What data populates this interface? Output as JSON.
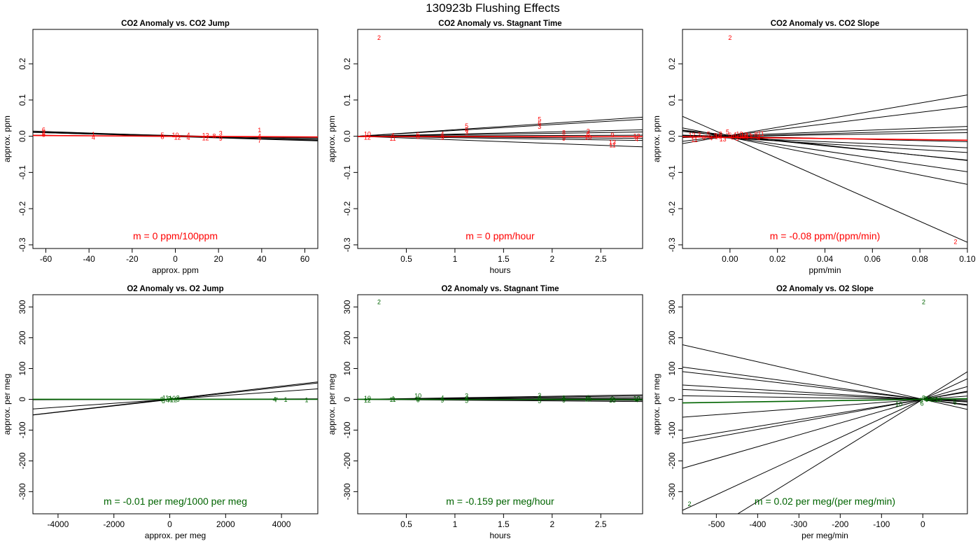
{
  "figure_title": "130923b   Flushing Effects",
  "chart_data": [
    {
      "type": "scatter",
      "title": "CO2 Anomaly vs. CO2 Jump",
      "xlabel": "approx. ppm",
      "ylabel": "approx. ppm",
      "xlim": [
        -66,
        66
      ],
      "ylim": [
        -0.31,
        0.295
      ],
      "xticks": [
        -60,
        -40,
        -20,
        0,
        20,
        40,
        60
      ],
      "yticks": [
        -0.3,
        -0.2,
        -0.1,
        0.0,
        0.1,
        0.2
      ],
      "color": "#ff0000",
      "fit_color": "#ff0000",
      "annotation": "m = 0 ppm/100ppm",
      "points": [
        {
          "x": -61,
          "y": 0.018,
          "label": "6"
        },
        {
          "x": -61,
          "y": 0.01,
          "label": "2"
        },
        {
          "x": -61,
          "y": 0.004,
          "label": "8"
        },
        {
          "x": -38,
          "y": 0.005,
          "label": "1"
        },
        {
          "x": -38,
          "y": -0.004,
          "label": "4"
        },
        {
          "x": -6,
          "y": 0.003,
          "label": "5"
        },
        {
          "x": -6,
          "y": -0.002,
          "label": "8"
        },
        {
          "x": 0,
          "y": 0.003,
          "label": "10"
        },
        {
          "x": 1,
          "y": -0.004,
          "label": "12"
        },
        {
          "x": 6,
          "y": 0.003,
          "label": "4"
        },
        {
          "x": 6,
          "y": -0.005,
          "label": "4"
        },
        {
          "x": 14,
          "y": 0.002,
          "label": "13"
        },
        {
          "x": 14,
          "y": -0.006,
          "label": "12"
        },
        {
          "x": 18,
          "y": 0.0,
          "label": "8"
        },
        {
          "x": 21,
          "y": 0.008,
          "label": "3"
        },
        {
          "x": 21,
          "y": -0.007,
          "label": "9"
        },
        {
          "x": 39,
          "y": 0.017,
          "label": "1"
        },
        {
          "x": 39,
          "y": 0.0,
          "label": "4"
        },
        {
          "x": 39,
          "y": -0.012,
          "label": "7"
        }
      ],
      "lines": [
        {
          "slope": -0.0002,
          "intercept": 0.001
        },
        {
          "slope": -0.00018,
          "intercept": -0.001
        },
        {
          "slope": -0.00016,
          "intercept": 0.0
        },
        {
          "slope": -0.00015,
          "intercept": 0.002
        },
        {
          "slope": -6e-05,
          "intercept": -0.001
        }
      ],
      "fit": {
        "slope": -3e-05,
        "intercept": 0.0
      }
    },
    {
      "type": "scatter",
      "title": "CO2 Anomaly vs. Stagnant Time",
      "xlabel": "hours",
      "ylabel": "approx. ppm",
      "xlim": [
        0.0,
        2.93
      ],
      "ylim": [
        -0.31,
        0.295
      ],
      "xticks": [
        0.5,
        1.0,
        1.5,
        2.0,
        2.5
      ],
      "yticks": [
        -0.3,
        -0.2,
        -0.1,
        0.0,
        0.1,
        0.2
      ],
      "color": "#ff0000",
      "fit_color": "#ff0000",
      "annotation": "m = 0 ppm/hour",
      "points": [
        {
          "x": 0.22,
          "y": 0.272,
          "label": "2"
        },
        {
          "x": 0.1,
          "y": 0.006,
          "label": "10"
        },
        {
          "x": 0.1,
          "y": -0.004,
          "label": "12"
        },
        {
          "x": 0.36,
          "y": 0.002,
          "label": "4"
        },
        {
          "x": 0.36,
          "y": -0.007,
          "label": "11"
        },
        {
          "x": 0.62,
          "y": 0.004,
          "label": "6"
        },
        {
          "x": 0.62,
          "y": -0.002,
          "label": "8"
        },
        {
          "x": 0.87,
          "y": 0.006,
          "label": "4"
        },
        {
          "x": 0.87,
          "y": -0.005,
          "label": "9"
        },
        {
          "x": 1.12,
          "y": 0.028,
          "label": "5"
        },
        {
          "x": 1.12,
          "y": 0.018,
          "label": "6"
        },
        {
          "x": 1.12,
          "y": 0.01,
          "label": "3"
        },
        {
          "x": 1.87,
          "y": 0.047,
          "label": "5"
        },
        {
          "x": 1.87,
          "y": 0.036,
          "label": "6"
        },
        {
          "x": 1.87,
          "y": 0.026,
          "label": "3"
        },
        {
          "x": 2.12,
          "y": 0.01,
          "label": "8"
        },
        {
          "x": 2.12,
          "y": -0.007,
          "label": "9"
        },
        {
          "x": 2.37,
          "y": 0.014,
          "label": "3"
        },
        {
          "x": 2.37,
          "y": 0.006,
          "label": "6"
        },
        {
          "x": 2.37,
          "y": -0.004,
          "label": "10"
        },
        {
          "x": 2.62,
          "y": 0.003,
          "label": "9"
        },
        {
          "x": 2.62,
          "y": -0.017,
          "label": "13"
        },
        {
          "x": 2.62,
          "y": -0.025,
          "label": "11"
        },
        {
          "x": 2.87,
          "y": 0.0,
          "label": "12"
        },
        {
          "x": 2.87,
          "y": -0.008,
          "label": "4"
        }
      ],
      "lines": [
        {
          "slope": 0.018,
          "intercept": 0.0
        },
        {
          "slope": 0.016,
          "intercept": 0.0
        },
        {
          "slope": 0.006,
          "intercept": 0.0
        },
        {
          "slope": 0.004,
          "intercept": 0.0
        },
        {
          "slope": 0.001,
          "intercept": 0.0
        },
        {
          "slope": -0.002,
          "intercept": 0.0
        },
        {
          "slope": -0.004,
          "intercept": 0.0
        },
        {
          "slope": -0.01,
          "intercept": 0.0
        }
      ],
      "fit": {
        "slope": 0.0,
        "intercept": -0.001
      }
    },
    {
      "type": "scatter",
      "title": "CO2 Anomaly vs. CO2 Slope",
      "xlabel": "ppm/min",
      "ylabel": "approx. ppm",
      "xlim": [
        -0.02,
        0.1
      ],
      "ylim": [
        -0.31,
        0.295
      ],
      "xticks": [
        0.0,
        0.02,
        0.04,
        0.06,
        0.08,
        0.1
      ],
      "xticklabels": [
        "0.00",
        "0.02",
        "0.04",
        "0.06",
        "0.08",
        "0.10"
      ],
      "yticks": [
        -0.3,
        -0.2,
        -0.1,
        0.0,
        0.1,
        0.2
      ],
      "color": "#ff0000",
      "fit_color": "#ff0000",
      "annotation": "m = -0.08 ppm/(ppm/min)",
      "points": [
        {
          "x": 0.0,
          "y": 0.272,
          "label": "2"
        },
        {
          "x": 0.095,
          "y": -0.292,
          "label": "2"
        },
        {
          "x": -0.016,
          "y": 0.003,
          "label": "12"
        },
        {
          "x": -0.015,
          "y": -0.01,
          "label": "11"
        },
        {
          "x": -0.013,
          "y": 0.004,
          "label": "3"
        },
        {
          "x": -0.011,
          "y": -0.004,
          "label": "6"
        },
        {
          "x": -0.009,
          "y": 0.006,
          "label": "5"
        },
        {
          "x": -0.008,
          "y": -0.006,
          "label": "4"
        },
        {
          "x": -0.006,
          "y": 0.002,
          "label": "9"
        },
        {
          "x": -0.005,
          "y": -0.002,
          "label": "10"
        },
        {
          "x": -0.004,
          "y": 0.006,
          "label": "8"
        },
        {
          "x": -0.003,
          "y": -0.008,
          "label": "13"
        },
        {
          "x": -0.001,
          "y": 0.012,
          "label": "5"
        },
        {
          "x": 0.0,
          "y": 0.003,
          "label": "6"
        },
        {
          "x": 0.001,
          "y": -0.004,
          "label": "8"
        },
        {
          "x": 0.002,
          "y": 0.004,
          "label": "4"
        },
        {
          "x": 0.003,
          "y": -0.007,
          "label": "3"
        },
        {
          "x": 0.004,
          "y": 0.006,
          "label": "10"
        },
        {
          "x": 0.005,
          "y": -0.001,
          "label": "12"
        },
        {
          "x": 0.006,
          "y": 0.004,
          "label": "12"
        },
        {
          "x": 0.007,
          "y": -0.004,
          "label": "9"
        },
        {
          "x": 0.008,
          "y": 0.002,
          "label": "11"
        },
        {
          "x": 0.009,
          "y": -0.002,
          "label": "7"
        },
        {
          "x": 0.011,
          "y": 0.005,
          "label": "8"
        },
        {
          "x": 0.012,
          "y": -0.006,
          "label": "4"
        },
        {
          "x": 0.013,
          "y": 0.007,
          "label": "11"
        }
      ],
      "lines": [
        {
          "slope": 1.12,
          "intercept": 0.002
        },
        {
          "slope": 0.8,
          "intercept": 0.002
        },
        {
          "slope": 0.25,
          "intercept": 0.002
        },
        {
          "slope": 0.18,
          "intercept": 0.0
        },
        {
          "slope": 0.1,
          "intercept": 0.0
        },
        {
          "slope": -0.15,
          "intercept": 0.0
        },
        {
          "slope": -0.28,
          "intercept": -0.004
        },
        {
          "slope": -0.66,
          "intercept": 0.0
        },
        {
          "slope": -0.7,
          "intercept": 0.003
        },
        {
          "slope": -0.95,
          "intercept": -0.003
        },
        {
          "slope": -1.3,
          "intercept": -0.003
        },
        {
          "slope": -2.9,
          "intercept": -0.003
        },
        {
          "slope": -0.4,
          "intercept": -0.005
        }
      ],
      "fit": {
        "slope": -0.08,
        "intercept": -0.003
      }
    },
    {
      "type": "scatter",
      "title": "O2 Anomaly vs. O2 Jump",
      "xlabel": "approx. per meg",
      "ylabel": "approx. per meg",
      "xlim": [
        -4900,
        5300
      ],
      "ylim": [
        -372,
        340
      ],
      "xticks": [
        -4000,
        -2000,
        0,
        2000,
        4000
      ],
      "yticks": [
        -300,
        -200,
        -100,
        0,
        100,
        200,
        300
      ],
      "color": "#006400",
      "fit_color": "#006400",
      "annotation": "m = -0.01 per meg/1000 per meg",
      "points": [
        {
          "x": -280,
          "y": 0,
          "label": "8"
        },
        {
          "x": -230,
          "y": -6,
          "label": "5"
        },
        {
          "x": -150,
          "y": 4,
          "label": "11"
        },
        {
          "x": -80,
          "y": -3,
          "label": "4"
        },
        {
          "x": -20,
          "y": 2,
          "label": "3"
        },
        {
          "x": 40,
          "y": -2,
          "label": "9"
        },
        {
          "x": 90,
          "y": 3,
          "label": "10"
        },
        {
          "x": 140,
          "y": -2,
          "label": "12"
        },
        {
          "x": 290,
          "y": 5,
          "label": "8"
        },
        {
          "x": 290,
          "y": -1,
          "label": "6"
        },
        {
          "x": 3750,
          "y": 0,
          "label": "4"
        },
        {
          "x": 3810,
          "y": -2,
          "label": "7"
        },
        {
          "x": 4150,
          "y": -1,
          "label": "1"
        },
        {
          "x": 4900,
          "y": -2,
          "label": "1"
        }
      ],
      "lines": [
        {
          "slope": 0.0105,
          "intercept": 1.0
        },
        {
          "slope": 0.0102,
          "intercept": -1.0
        },
        {
          "slope": 0.0064,
          "intercept": 0.0
        },
        {
          "slope": 0.0003,
          "intercept": 0.0
        }
      ],
      "fit": {
        "slope": -1e-05,
        "intercept": 0.0
      }
    },
    {
      "type": "scatter",
      "title": "O2 Anomaly vs. Stagnant Time",
      "xlabel": "hours",
      "ylabel": "approx. per meg",
      "xlim": [
        0.0,
        2.93
      ],
      "ylim": [
        -372,
        340
      ],
      "xticks": [
        0.5,
        1.0,
        1.5,
        2.0,
        2.5
      ],
      "yticks": [
        -300,
        -200,
        -100,
        0,
        100,
        200,
        300
      ],
      "color": "#006400",
      "fit_color": "#006400",
      "annotation": "m = -0.159 per meg/hour",
      "points": [
        {
          "x": 0.22,
          "y": 316,
          "label": "2"
        },
        {
          "x": 0.1,
          "y": 3,
          "label": "10"
        },
        {
          "x": 0.1,
          "y": -3,
          "label": "12"
        },
        {
          "x": 0.36,
          "y": 2,
          "label": "4"
        },
        {
          "x": 0.36,
          "y": -1,
          "label": "11"
        },
        {
          "x": 0.62,
          "y": 11,
          "label": "10"
        },
        {
          "x": 0.62,
          "y": 1,
          "label": "8"
        },
        {
          "x": 0.62,
          "y": -2,
          "label": "6"
        },
        {
          "x": 0.87,
          "y": 5,
          "label": "4"
        },
        {
          "x": 0.87,
          "y": -3,
          "label": "9"
        },
        {
          "x": 1.12,
          "y": 11,
          "label": "3"
        },
        {
          "x": 1.12,
          "y": 2,
          "label": "6"
        },
        {
          "x": 1.12,
          "y": -5,
          "label": "5"
        },
        {
          "x": 1.87,
          "y": 13,
          "label": "3"
        },
        {
          "x": 1.87,
          "y": 4,
          "label": "6"
        },
        {
          "x": 1.87,
          "y": -6,
          "label": "5"
        },
        {
          "x": 2.12,
          "y": 4,
          "label": "8"
        },
        {
          "x": 2.12,
          "y": -3,
          "label": "9"
        },
        {
          "x": 2.37,
          "y": 6,
          "label": "6"
        },
        {
          "x": 2.37,
          "y": 0,
          "label": "10"
        },
        {
          "x": 2.62,
          "y": 1,
          "label": "9"
        },
        {
          "x": 2.62,
          "y": -3,
          "label": "13"
        },
        {
          "x": 2.87,
          "y": 2,
          "label": "12"
        },
        {
          "x": 2.87,
          "y": -2,
          "label": "4"
        }
      ],
      "lines": [
        {
          "slope": 5.0,
          "intercept": 0.0
        },
        {
          "slope": 3.8,
          "intercept": 0.0
        },
        {
          "slope": 2.1,
          "intercept": 0.0
        },
        {
          "slope": 0.7,
          "intercept": 0.0
        },
        {
          "slope": -1.2,
          "intercept": 0.0
        },
        {
          "slope": -2.5,
          "intercept": 0.0
        }
      ],
      "fit": {
        "slope": -0.159,
        "intercept": 0.0
      }
    },
    {
      "type": "scatter",
      "title": "O2 Anomaly vs. O2 Slope",
      "xlabel": "per meg/min",
      "ylabel": "approx. per meg",
      "xlim": [
        -582,
        108
      ],
      "ylim": [
        -372,
        340
      ],
      "xticks": [
        -500,
        -400,
        -300,
        -200,
        -100,
        0
      ],
      "yticks": [
        -300,
        -200,
        -100,
        0,
        100,
        200,
        300
      ],
      "color": "#006400",
      "fit_color": "#006400",
      "annotation": "m = 0.02 per meg/(per meg/min)",
      "points": [
        {
          "x": 2,
          "y": 316,
          "label": "2"
        },
        {
          "x": -565,
          "y": -340,
          "label": "2"
        },
        {
          "x": -58,
          "y": -16,
          "label": "10"
        },
        {
          "x": -4,
          "y": -3,
          "label": "5"
        },
        {
          "x": -2,
          "y": -14,
          "label": "6"
        },
        {
          "x": 2,
          "y": 4,
          "label": "8"
        },
        {
          "x": 6,
          "y": 2,
          "label": "3"
        },
        {
          "x": 10,
          "y": -1,
          "label": "9"
        },
        {
          "x": 14,
          "y": 1,
          "label": "12"
        },
        {
          "x": 20,
          "y": -2,
          "label": "4"
        },
        {
          "x": 30,
          "y": 0,
          "label": "11"
        },
        {
          "x": 38,
          "y": -1,
          "label": "13"
        },
        {
          "x": 78,
          "y": -10,
          "label": "5"
        }
      ],
      "lines": [
        {
          "slope": -0.305,
          "intercept": 0.0
        },
        {
          "slope": -0.18,
          "intercept": 0.0
        },
        {
          "slope": -0.155,
          "intercept": 0.0
        },
        {
          "slope": -0.08,
          "intercept": 0.0
        },
        {
          "slope": -0.055,
          "intercept": 0.0
        },
        {
          "slope": -0.02,
          "intercept": 0.0
        },
        {
          "slope": 0.1,
          "intercept": 0.0
        },
        {
          "slope": 0.22,
          "intercept": 0.0
        },
        {
          "slope": 0.245,
          "intercept": 0.0
        },
        {
          "slope": 0.385,
          "intercept": 0.0
        },
        {
          "slope": 0.62,
          "intercept": 0.0
        },
        {
          "slope": 0.83,
          "intercept": 0.0
        }
      ],
      "fit": {
        "slope": 0.02,
        "intercept": 0.0
      }
    }
  ]
}
